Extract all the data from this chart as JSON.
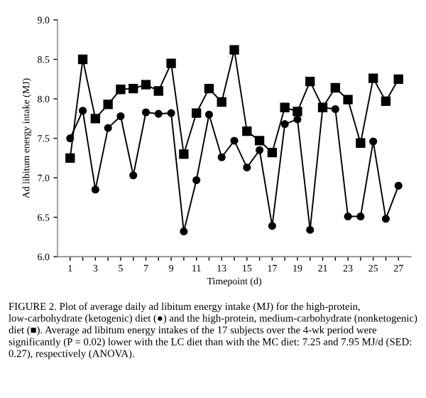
{
  "chart_data": {
    "type": "line",
    "xlabel": "Timepoint (d)",
    "ylabel": "Ad libitum energy intake (MJ)",
    "x": [
      1,
      2,
      3,
      4,
      5,
      6,
      7,
      8,
      9,
      10,
      11,
      12,
      13,
      14,
      15,
      16,
      17,
      18,
      19,
      20,
      21,
      22,
      23,
      24,
      25,
      26,
      27
    ],
    "series": [
      {
        "color": "#000000",
        "marker": "circle",
        "values": [
          7.5,
          7.85,
          6.85,
          7.63,
          7.78,
          7.03,
          7.83,
          7.81,
          7.82,
          6.32,
          6.97,
          7.8,
          7.26,
          7.47,
          7.13,
          7.35,
          6.39,
          7.68,
          7.74,
          6.34,
          7.89,
          7.87,
          6.51,
          6.51,
          7.46,
          6.48,
          6.9
        ]
      },
      {
        "color": "#000000",
        "marker": "square",
        "values": [
          7.25,
          8.5,
          7.75,
          7.93,
          8.12,
          8.13,
          8.18,
          8.1,
          8.45,
          7.3,
          7.82,
          8.13,
          7.96,
          8.62,
          7.59,
          7.47,
          7.32,
          7.89,
          7.84,
          8.22,
          7.89,
          8.14,
          7.99,
          7.44,
          8.26,
          7.97,
          8.25
        ]
      }
    ],
    "xlim": [
      0,
      28
    ],
    "ylim": [
      6.0,
      9.0
    ],
    "xticks": [
      1,
      {
        "value": 2,
        "label": null
      },
      3,
      {
        "value": 4,
        "label": null
      },
      5,
      {
        "value": 6,
        "label": null
      },
      7,
      {
        "value": 8,
        "label": null
      },
      9,
      {
        "value": 10,
        "label": null
      },
      11,
      {
        "value": 12,
        "label": null
      },
      13,
      {
        "value": 14,
        "label": null
      },
      15,
      {
        "value": 16,
        "label": null
      },
      17,
      {
        "value": 18,
        "label": null
      },
      19,
      {
        "value": 20,
        "label": null
      },
      21,
      {
        "value": 22,
        "label": null
      },
      23,
      {
        "value": 24,
        "label": null
      },
      25,
      {
        "value": 26,
        "label": null
      },
      27
    ],
    "yticks": [
      {
        "value": 6.0,
        "label": "6.0"
      },
      {
        "value": 6.5,
        "label": "6.5"
      },
      {
        "value": 7.0,
        "label": "7.0"
      },
      {
        "value": 7.5,
        "label": "7.5"
      },
      {
        "value": 8.0,
        "label": "8.0"
      },
      {
        "value": 8.5,
        "label": "8.5"
      },
      {
        "value": 9.0,
        "label": "9.0"
      }
    ],
    "grid": false,
    "legend": false,
    "line_style": "solid",
    "annotations": [
      "FIGURE 2. Plot of average daily ad libitum energy intake (MJ) for the high-protein, low-carbohydrate (ketogenic) diet (●) and the high-protein, medium-carbohydrate (nonketogenic) diet (■). Average ad libitum energy intakes of the 17 subjects over the 4-wk period were significantly (P = 0.02) lower with the LC diet than with the MC diet: 7.25 and 7.95 MJ/d (SED: 0.27), respectively (ANOVA)."
    ]
  }
}
